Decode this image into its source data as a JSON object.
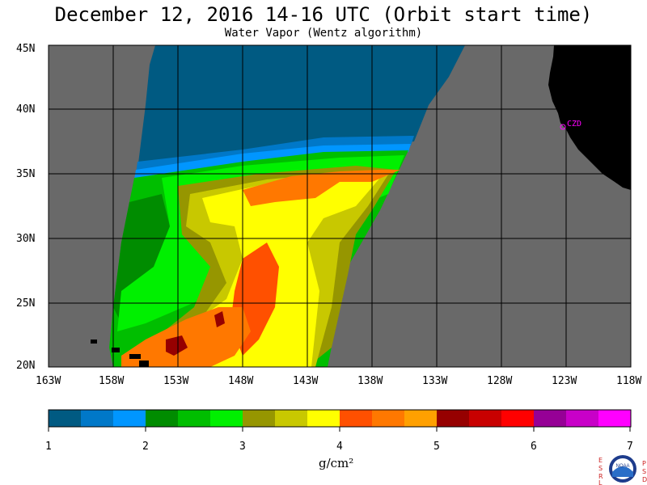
{
  "title": "December 12, 2016  14-16 UTC  (Orbit start time)",
  "subtitle": "Water Vapor (Wentz algorithm)",
  "lat_labels": [
    "45N",
    "40N",
    "35N",
    "30N",
    "25N",
    "20N"
  ],
  "lon_labels": [
    "163W",
    "158W",
    "153W",
    "148W",
    "143W",
    "138W",
    "133W",
    "128W",
    "123W",
    "118W"
  ],
  "station_label": "CZD",
  "colorbar": {
    "ticks": [
      "1",
      "2",
      "3",
      "4",
      "5",
      "6",
      "7"
    ],
    "unit": "g/cm²",
    "colors": [
      "#005a82",
      "#0078c8",
      "#0096ff",
      "#008c00",
      "#00be00",
      "#00f000",
      "#969600",
      "#c8c800",
      "#ffff00",
      "#ff5000",
      "#ff7800",
      "#ffa000",
      "#960000",
      "#c80000",
      "#ff0000",
      "#960096",
      "#c800c8",
      "#ff00ff"
    ]
  },
  "colors": {
    "land_no_data": "#696969",
    "coastline_land": "#000000",
    "grid": "#000000"
  },
  "logo": {
    "left_letters": [
      "E",
      "S",
      "R",
      "L"
    ],
    "right_letters": [
      "P",
      "S",
      "D"
    ],
    "center": "NOAA"
  }
}
